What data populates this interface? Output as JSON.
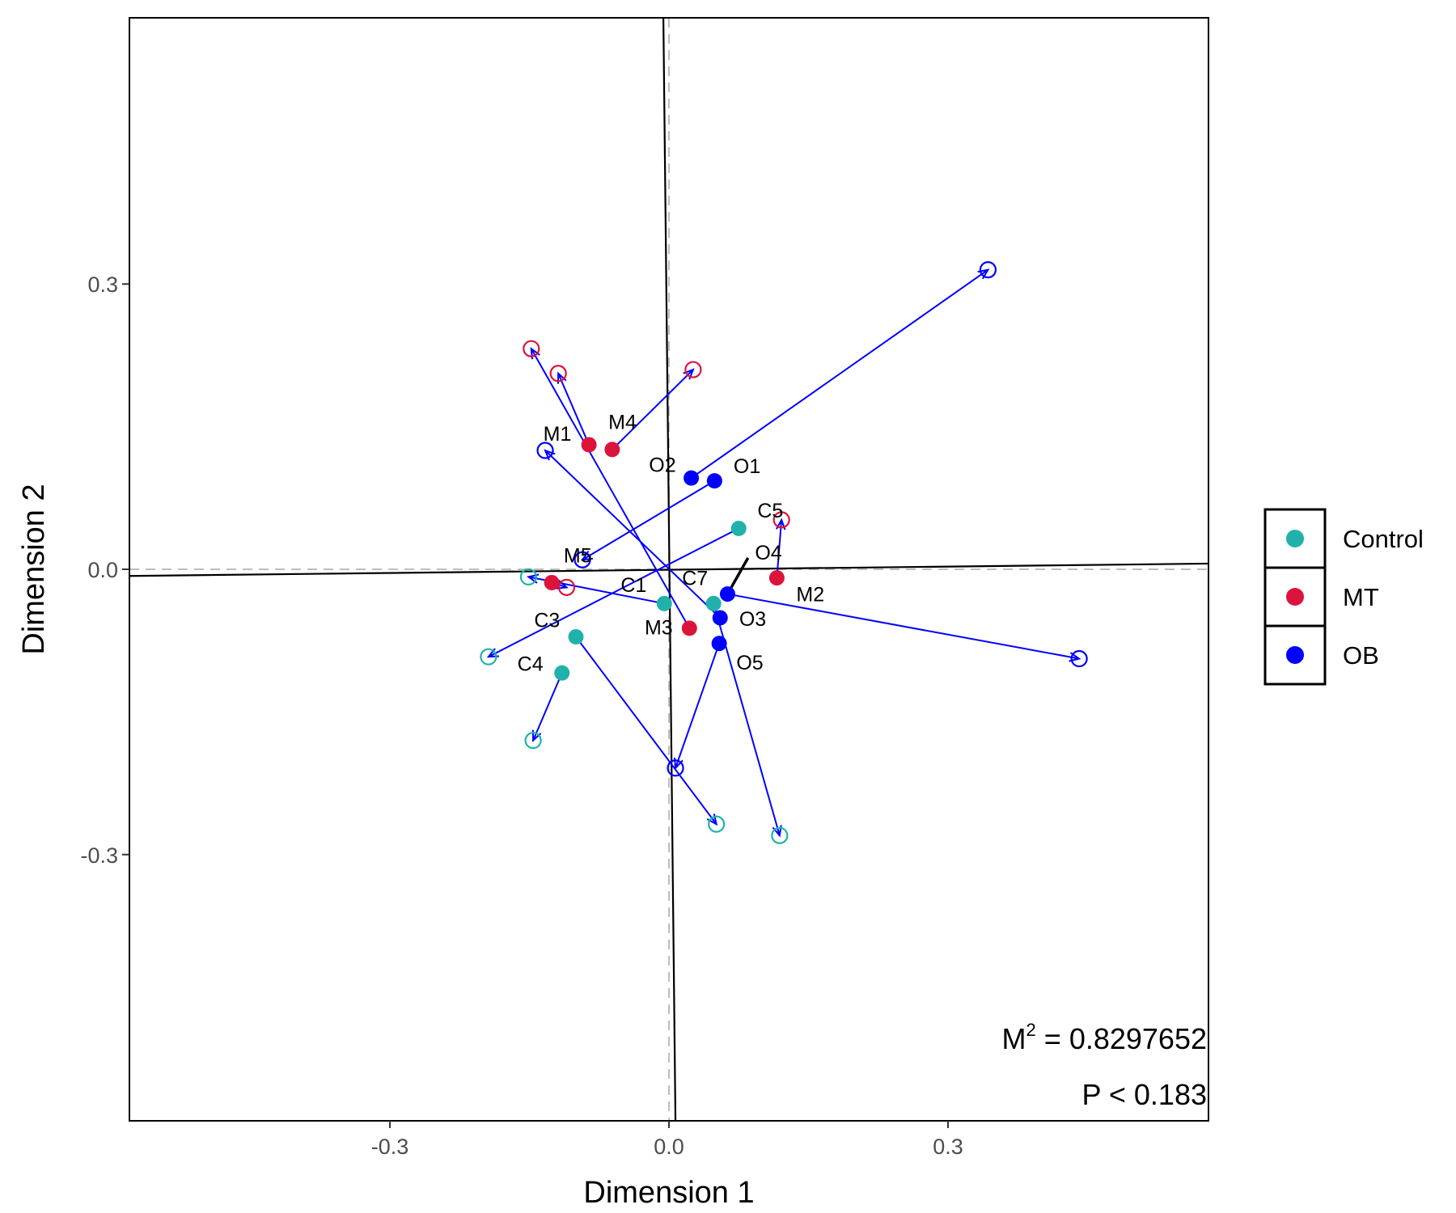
{
  "chart_data": {
    "type": "scatter",
    "subtype": "procrustes",
    "xlabel": "Dimension 1",
    "ylabel": "Dimension 2",
    "xlim": [
      -0.58,
      0.58
    ],
    "ylim": [
      -0.58,
      0.58
    ],
    "xticks": [
      -0.3,
      0.0,
      0.3
    ],
    "yticks": [
      -0.3,
      0.0,
      0.3
    ],
    "xtick_labels": [
      "-0.3",
      "0.0",
      "0.3"
    ],
    "ytick_labels": [
      "-0.3",
      "0.0",
      "0.3"
    ],
    "grid": false,
    "rotated_axes": [
      {
        "from": [
          -0.58,
          -0.007
        ],
        "to": [
          0.58,
          0.006
        ]
      },
      {
        "from": [
          -0.006,
          0.58
        ],
        "to": [
          0.007,
          -0.58
        ]
      }
    ],
    "stats": {
      "m2_base": "M",
      "m2_sup": "2",
      "m2_value": " = 0.8297652",
      "p_text": "P < 0.183"
    },
    "groups": [
      {
        "name": "Control",
        "color": "#20B2AA"
      },
      {
        "name": "MT",
        "color": "#DC143C"
      },
      {
        "name": "OB",
        "color": "#0000FF"
      }
    ],
    "legend": {
      "position": "right",
      "entries": [
        "Control",
        "MT",
        "OB"
      ]
    },
    "points": [
      {
        "label": "C1",
        "group": "Control",
        "x": -0.005,
        "y": -0.036,
        "tx": -0.151,
        "ty": -0.008
      },
      {
        "label": "C3",
        "group": "Control",
        "x": -0.1,
        "y": -0.071,
        "tx": 0.051,
        "ty": -0.268
      },
      {
        "label": "C4",
        "group": "Control",
        "x": -0.115,
        "y": -0.109,
        "tx": -0.146,
        "ty": -0.18
      },
      {
        "label": "C5",
        "group": "Control",
        "x": 0.075,
        "y": 0.043,
        "tx": -0.194,
        "ty": -0.092
      },
      {
        "label": "C7",
        "group": "Control",
        "x": 0.048,
        "y": -0.036,
        "tx": 0.119,
        "ty": -0.28
      },
      {
        "label": "M1",
        "group": "MT",
        "x": -0.086,
        "y": 0.131,
        "tx": -0.119,
        "ty": 0.206
      },
      {
        "label": "M2",
        "group": "MT",
        "x": 0.116,
        "y": -0.009,
        "tx": 0.121,
        "ty": 0.052
      },
      {
        "label": "M3",
        "group": "MT",
        "x": 0.022,
        "y": -0.062,
        "tx": -0.148,
        "ty": 0.232
      },
      {
        "label": "M4",
        "group": "MT",
        "x": -0.061,
        "y": 0.126,
        "tx": 0.026,
        "ty": 0.21
      },
      {
        "label": "M5",
        "group": "MT",
        "x": -0.126,
        "y": -0.014,
        "tx": -0.11,
        "ty": -0.019
      },
      {
        "label": "O1",
        "group": "OB",
        "x": 0.049,
        "y": 0.093,
        "tx": -0.093,
        "ty": 0.01
      },
      {
        "label": "O2",
        "group": "OB",
        "x": 0.024,
        "y": 0.096,
        "tx": 0.343,
        "ty": 0.315
      },
      {
        "label": "O3",
        "group": "OB",
        "x": 0.055,
        "y": -0.051,
        "tx": -0.133,
        "ty": 0.125
      },
      {
        "label": "O4",
        "group": "OB",
        "x": 0.063,
        "y": -0.026,
        "tx": 0.441,
        "ty": -0.094
      },
      {
        "label": "O5",
        "group": "OB",
        "x": 0.054,
        "y": -0.078,
        "tx": 0.007,
        "ty": -0.209
      }
    ],
    "annotations": [
      {
        "text": "C1",
        "x": -0.038,
        "y": -0.018
      },
      {
        "text": "C3",
        "x": -0.131,
        "y": -0.055
      },
      {
        "text": "C4",
        "x": -0.149,
        "y": -0.101
      },
      {
        "text": "C5",
        "x": 0.109,
        "y": 0.06
      },
      {
        "text": "C7",
        "x": 0.028,
        "y": -0.011
      },
      {
        "text": "M1",
        "x": -0.12,
        "y": 0.141
      },
      {
        "text": "M2",
        "x": 0.152,
        "y": -0.028
      },
      {
        "text": "M3",
        "x": -0.011,
        "y": -0.063
      },
      {
        "text": "M4",
        "x": -0.05,
        "y": 0.153
      },
      {
        "text": "M5",
        "x": -0.098,
        "y": 0.013
      },
      {
        "text": "O1",
        "x": 0.084,
        "y": 0.107
      },
      {
        "text": "O2",
        "x": -0.007,
        "y": 0.108
      },
      {
        "text": "O3",
        "x": 0.09,
        "y": -0.054
      },
      {
        "text": "O4",
        "x": 0.107,
        "y": 0.016
      },
      {
        "text": "O5",
        "x": 0.087,
        "y": -0.1
      }
    ],
    "black_segment": {
      "from": [
        0.085,
        0.012
      ],
      "to": [
        0.063,
        -0.026
      ]
    }
  }
}
